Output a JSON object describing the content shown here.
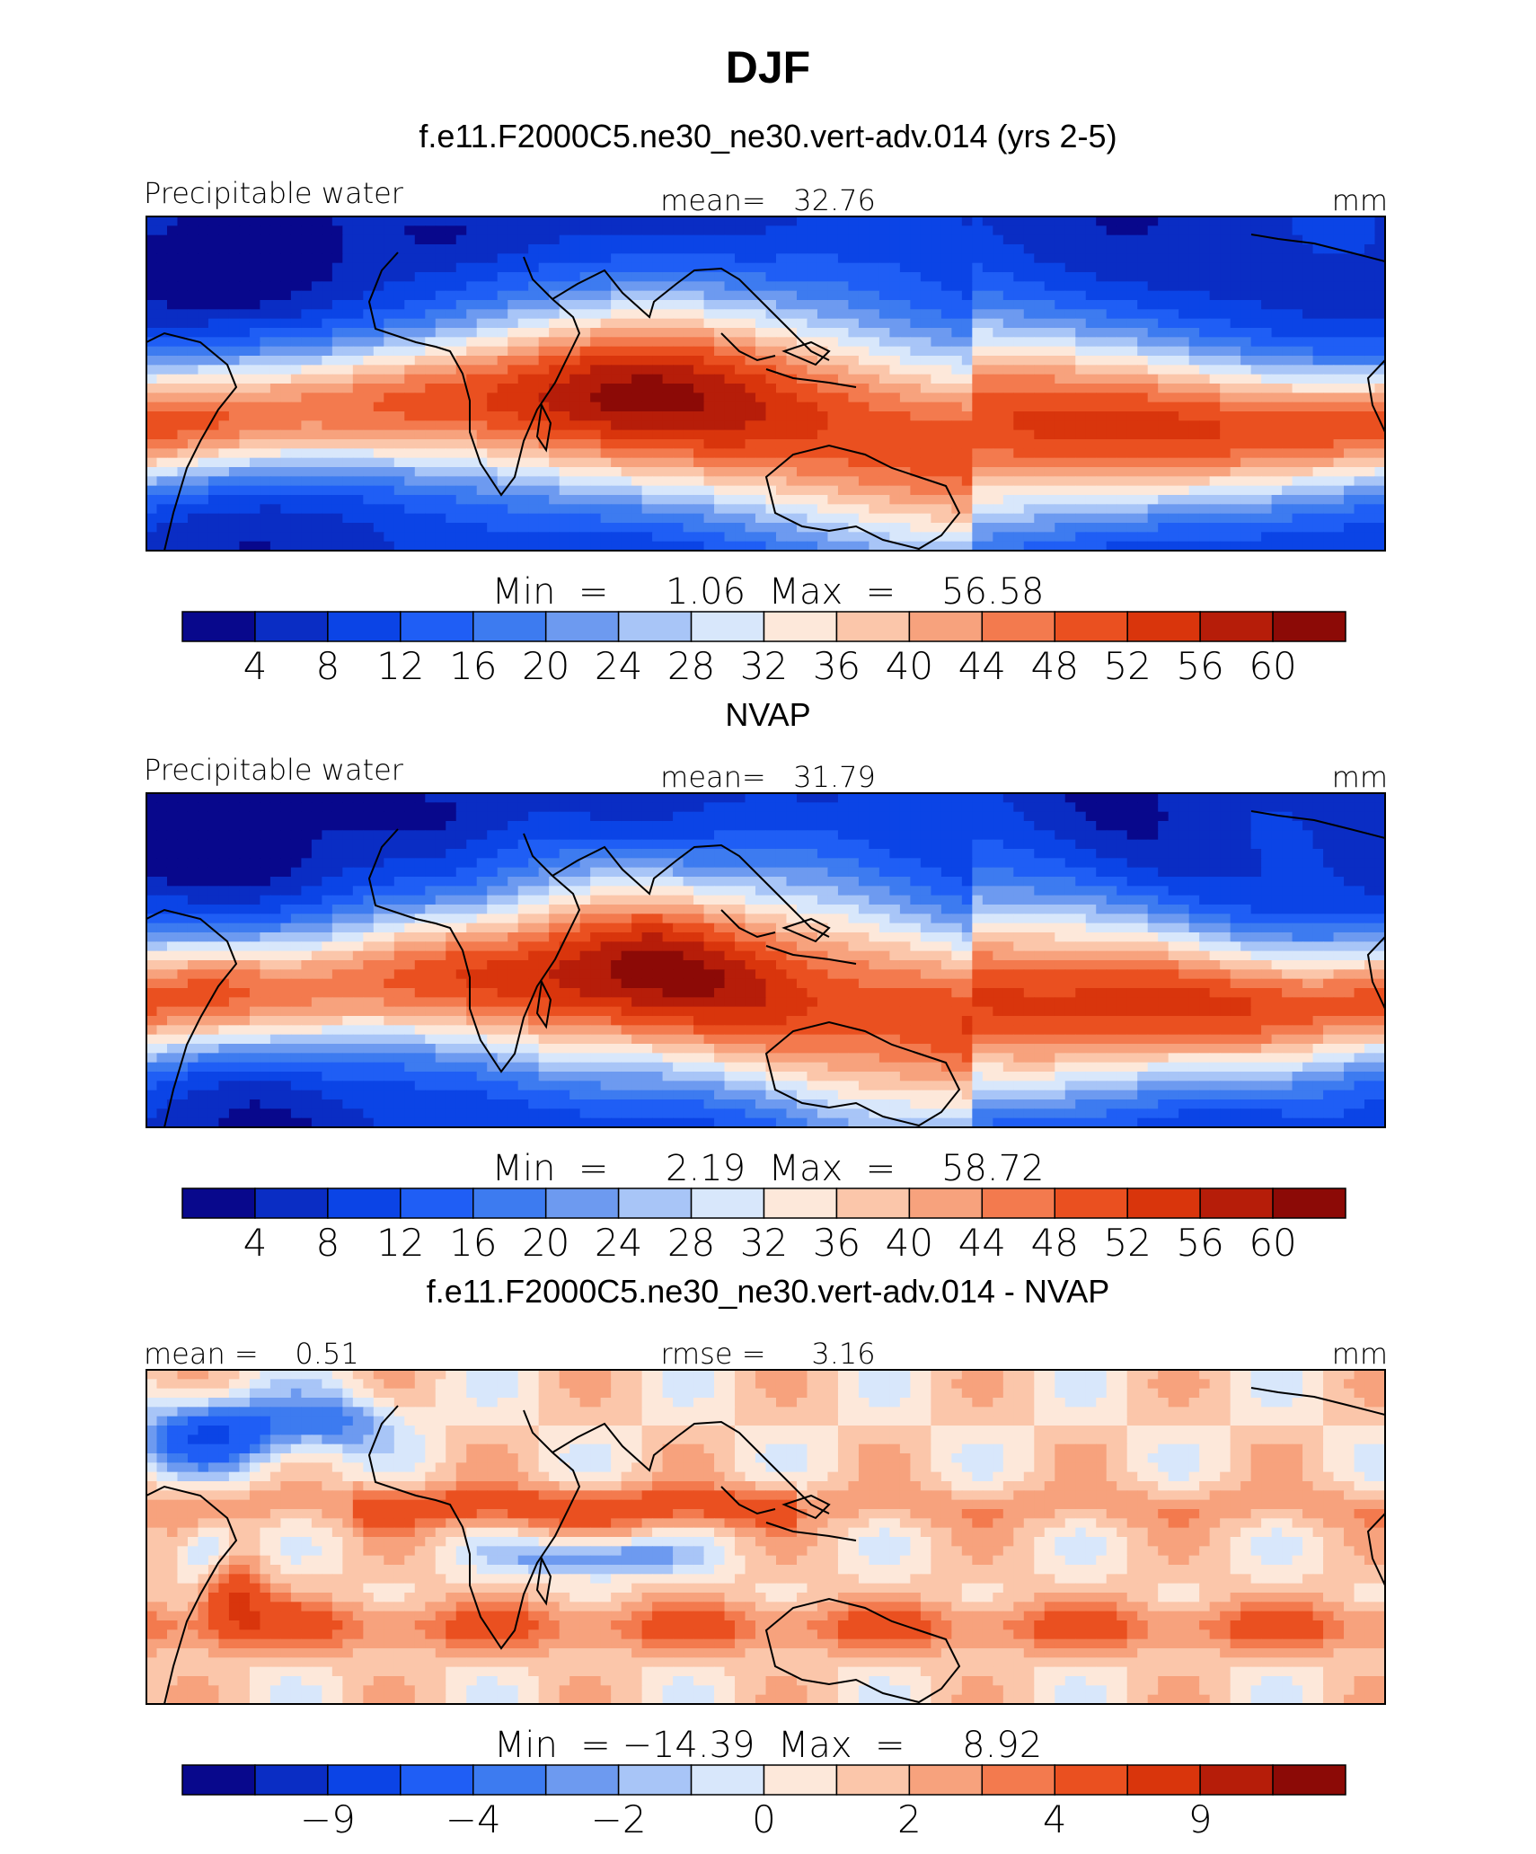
{
  "title": "DJF",
  "panels": [
    {
      "id": "model",
      "header": "f.e11.F2000C5.ne30_ne30.vert-adv.014 (yrs 2-5)",
      "left_label": "Precipitable water",
      "center_label": "mean=   32.76",
      "units": "mm",
      "minmax": "Min  =     1.06  Max  =    56.58",
      "colorbar": "full"
    },
    {
      "id": "obs",
      "header": "NVAP",
      "left_label": "Precipitable water",
      "center_label": "mean=   31.79",
      "units": "mm",
      "minmax": "Min  =     2.19  Max  =    58.72",
      "colorbar": "full"
    },
    {
      "id": "diff",
      "header": "f.e11.F2000C5.ne30_ne30.vert-adv.014 - NVAP",
      "left_label": "mean =    0.51",
      "center_label": "rmse =     3.16",
      "units": "mm",
      "minmax": "Min  = −14.39  Max  =     8.92",
      "colorbar": "diff"
    }
  ],
  "colors": {
    "palette": [
      "#08088c",
      "#0a2dc4",
      "#0b44e6",
      "#1f5ef5",
      "#3d7bf0",
      "#6d9af0",
      "#a8c5f7",
      "#d8e7fb",
      "#fde8da",
      "#fbc6aa",
      "#f7a27d",
      "#f37a4e",
      "#ea5020",
      "#d9350c",
      "#b61d09",
      "#8c0a06"
    ],
    "land_outline": "#000000"
  },
  "chart_data": [
    {
      "type": "heatmap",
      "title": "Precipitable water",
      "subtitle": "f.e11.F2000C5.ne30_ne30.vert-adv.014 (yrs 2-5)",
      "units": "mm",
      "mean": 32.76,
      "min": 1.06,
      "max": 56.58,
      "levels": [
        4,
        8,
        12,
        16,
        20,
        24,
        28,
        32,
        36,
        40,
        44,
        48,
        52,
        56,
        60
      ],
      "colorbar_ticks": [
        "4",
        "8",
        "12",
        "16",
        "20",
        "24",
        "28",
        "32",
        "36",
        "40",
        "44",
        "48",
        "52",
        "56",
        "60"
      ]
    },
    {
      "type": "heatmap",
      "title": "Precipitable water",
      "subtitle": "NVAP",
      "units": "mm",
      "mean": 31.79,
      "min": 2.19,
      "max": 58.72,
      "levels": [
        4,
        8,
        12,
        16,
        20,
        24,
        28,
        32,
        36,
        40,
        44,
        48,
        52,
        56,
        60
      ],
      "colorbar_ticks": [
        "4",
        "8",
        "12",
        "16",
        "20",
        "24",
        "28",
        "32",
        "36",
        "40",
        "44",
        "48",
        "52",
        "56",
        "60"
      ]
    },
    {
      "type": "heatmap",
      "title": "f.e11.F2000C5.ne30_ne30.vert-adv.014 - NVAP",
      "units": "mm",
      "mean": 0.51,
      "rmse": 3.16,
      "min": -14.39,
      "max": 8.92,
      "levels": [
        -12,
        -9,
        -6,
        -4,
        -3,
        -2,
        -1,
        0,
        1,
        2,
        3,
        4,
        6,
        9,
        12
      ],
      "colorbar_ticks": [
        "−9",
        "−4",
        "−2",
        "0",
        "2",
        "4",
        "9"
      ],
      "colorbar_tick_levels": [
        -9,
        -4,
        -2,
        0,
        2,
        4,
        9
      ]
    }
  ]
}
